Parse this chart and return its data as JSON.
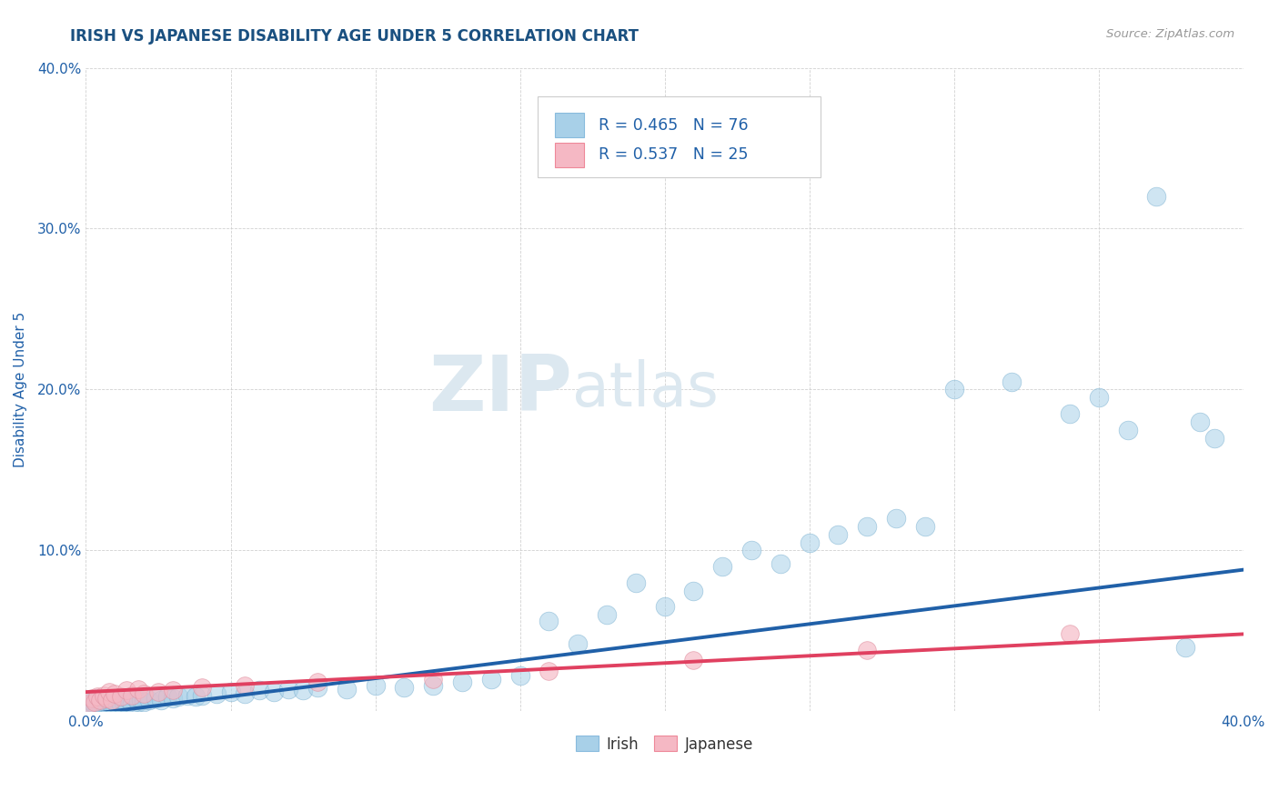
{
  "title": "IRISH VS JAPANESE DISABILITY AGE UNDER 5 CORRELATION CHART",
  "source": "Source: ZipAtlas.com",
  "ylabel": "Disability Age Under 5",
  "xlim": [
    0.0,
    0.4
  ],
  "ylim": [
    0.0,
    0.4
  ],
  "irish_R": 0.465,
  "irish_N": 76,
  "japanese_R": 0.537,
  "japanese_N": 25,
  "irish_color": "#a8d0e8",
  "japanese_color": "#f5b8c4",
  "irish_line_color": "#2060a8",
  "japanese_line_color": "#e04060",
  "watermark_zip": "ZIP",
  "watermark_atlas": "atlas",
  "watermark_color": "#dce8f0",
  "background_color": "#ffffff",
  "title_color": "#1a5080",
  "source_color": "#999999",
  "legend_R_color": "#2060a8",
  "axis_color": "#2060a8",
  "title_fontsize": 12,
  "grid_color": "#cccccc",
  "irish_line_end_y": 0.088,
  "irish_line_start_y": -0.002,
  "japanese_line_end_y": 0.048,
  "japanese_line_start_y": 0.012,
  "irish_x": [
    0.001,
    0.002,
    0.002,
    0.003,
    0.003,
    0.004,
    0.004,
    0.005,
    0.005,
    0.006,
    0.006,
    0.007,
    0.007,
    0.008,
    0.008,
    0.009,
    0.009,
    0.01,
    0.01,
    0.011,
    0.012,
    0.013,
    0.014,
    0.015,
    0.016,
    0.017,
    0.018,
    0.019,
    0.02,
    0.022,
    0.024,
    0.026,
    0.028,
    0.03,
    0.032,
    0.035,
    0.038,
    0.04,
    0.045,
    0.05,
    0.055,
    0.06,
    0.065,
    0.07,
    0.075,
    0.08,
    0.09,
    0.1,
    0.11,
    0.12,
    0.13,
    0.14,
    0.15,
    0.16,
    0.17,
    0.18,
    0.19,
    0.2,
    0.21,
    0.22,
    0.23,
    0.24,
    0.25,
    0.26,
    0.27,
    0.28,
    0.29,
    0.3,
    0.32,
    0.34,
    0.35,
    0.36,
    0.37,
    0.38,
    0.385,
    0.39
  ],
  "irish_y": [
    0.004,
    0.003,
    0.006,
    0.004,
    0.007,
    0.003,
    0.008,
    0.004,
    0.006,
    0.003,
    0.007,
    0.004,
    0.008,
    0.003,
    0.006,
    0.004,
    0.007,
    0.003,
    0.008,
    0.004,
    0.005,
    0.006,
    0.005,
    0.007,
    0.005,
    0.008,
    0.006,
    0.007,
    0.006,
    0.007,
    0.008,
    0.007,
    0.009,
    0.008,
    0.009,
    0.01,
    0.009,
    0.01,
    0.011,
    0.012,
    0.011,
    0.013,
    0.012,
    0.014,
    0.013,
    0.015,
    0.014,
    0.016,
    0.015,
    0.016,
    0.018,
    0.02,
    0.022,
    0.056,
    0.042,
    0.06,
    0.08,
    0.065,
    0.075,
    0.09,
    0.1,
    0.092,
    0.105,
    0.11,
    0.115,
    0.12,
    0.115,
    0.2,
    0.205,
    0.185,
    0.195,
    0.175,
    0.32,
    0.04,
    0.18,
    0.17
  ],
  "japanese_x": [
    0.001,
    0.002,
    0.003,
    0.004,
    0.005,
    0.006,
    0.007,
    0.008,
    0.009,
    0.01,
    0.012,
    0.014,
    0.016,
    0.018,
    0.02,
    0.025,
    0.03,
    0.04,
    0.055,
    0.08,
    0.12,
    0.16,
    0.21,
    0.27,
    0.34
  ],
  "japanese_y": [
    0.005,
    0.008,
    0.006,
    0.009,
    0.007,
    0.01,
    0.008,
    0.012,
    0.007,
    0.011,
    0.009,
    0.013,
    0.01,
    0.014,
    0.011,
    0.012,
    0.013,
    0.015,
    0.016,
    0.018,
    0.02,
    0.025,
    0.032,
    0.038,
    0.048
  ]
}
